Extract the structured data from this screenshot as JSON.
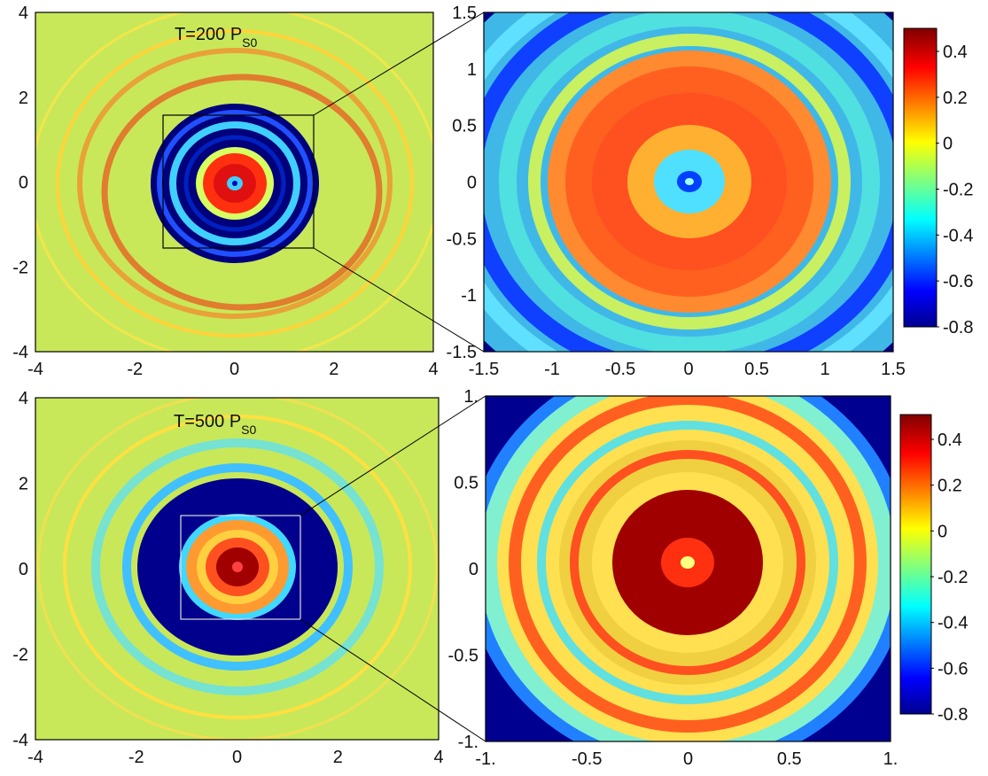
{
  "figure": {
    "colormap": "jet",
    "colors": {
      "background": "#c8e85a",
      "frame": "#000000"
    }
  },
  "chart_data": [
    {
      "type": "heatmap",
      "panel": "top-left",
      "annotation": {
        "text": "T=200 P",
        "sub": "S0"
      },
      "xlim": [
        -4,
        4
      ],
      "ylim": [
        -4,
        4
      ],
      "xticks": [
        "-4",
        "-2",
        "0",
        "2",
        "4"
      ],
      "yticks": [
        "4",
        "2",
        "0",
        "-2",
        "-4"
      ],
      "zoom_box": {
        "x": [
          -1.5,
          1.5
        ],
        "y": [
          -1.5,
          1.5
        ],
        "color": "#000000"
      }
    },
    {
      "type": "heatmap",
      "panel": "top-right",
      "xlim": [
        -1.5,
        1.5
      ],
      "ylim": [
        -1.5,
        1.5
      ],
      "xticks": [
        "-1.5",
        "-1",
        "-0.5",
        "0",
        "0.5",
        "1",
        "1.5"
      ],
      "yticks": [
        "1.5",
        "1",
        "0.5",
        "0",
        "-0.5",
        "-1",
        "-1.5"
      ],
      "colorbar": {
        "ticks": [
          "0.4",
          "0.2",
          "0",
          "-0.2",
          "-0.4",
          "-0.6",
          "-0.8"
        ],
        "range": [
          -0.8,
          0.5
        ]
      }
    },
    {
      "type": "heatmap",
      "panel": "bottom-left",
      "annotation": {
        "text": "T=500 P",
        "sub": "S0"
      },
      "xlim": [
        -4,
        4
      ],
      "ylim": [
        -4,
        4
      ],
      "xticks": [
        "-4",
        "-2",
        "0",
        "2",
        "4"
      ],
      "yticks": [
        "4",
        "2",
        "0",
        "-2",
        "-4"
      ],
      "zoom_box": {
        "x": [
          -1.2,
          1.2
        ],
        "y": [
          -1.2,
          1.2
        ],
        "color": "#dddddd"
      }
    },
    {
      "type": "heatmap",
      "panel": "bottom-right",
      "xlim": [
        -1.2,
        1.2
      ],
      "ylim": [
        -1.2,
        1.2
      ],
      "xticks": [
        "-1.",
        "-0.5",
        "0",
        "0.5",
        "1."
      ],
      "yticks": [
        "1.",
        "0.5",
        "0",
        "-0.5",
        "-1."
      ],
      "colorbar": {
        "ticks": [
          "0.4",
          "0.2",
          "0",
          "-0.2",
          "-0.4",
          "-0.6",
          "-0.8"
        ],
        "range": [
          -0.8,
          0.55
        ]
      }
    }
  ]
}
